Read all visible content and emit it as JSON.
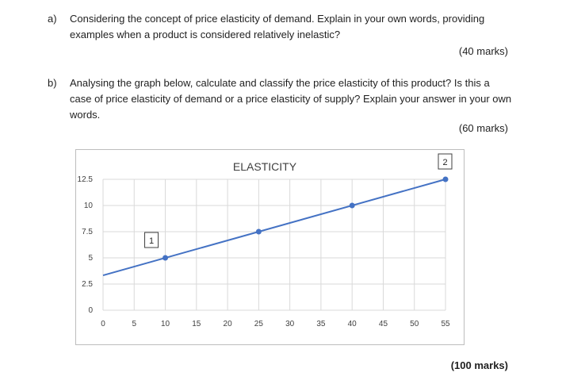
{
  "question_a": {
    "label": "a)",
    "text": "Considering the concept of price elasticity of demand. Explain in your own words, providing examples when a product is considered relatively inelastic?",
    "marks": "(40 marks)"
  },
  "question_b": {
    "label": "b)",
    "text": "Analysing the graph below, calculate and classify the price elasticity of this product? Is this a case of price elasticity of demand or a price elasticity of supply? Explain your answer in your own words.",
    "marks": "(60 marks)"
  },
  "total_marks": "(100 marks)",
  "chart_data": {
    "type": "line",
    "title": "ELASTICITY",
    "x_ticks": [
      "0",
      "5",
      "10",
      "15",
      "20",
      "25",
      "30",
      "35",
      "40",
      "45",
      "50",
      "55"
    ],
    "y_ticks": [
      "0",
      "2.5",
      "5",
      "7.5",
      "10",
      "12.5"
    ],
    "xlim": [
      0,
      55
    ],
    "ylim": [
      0,
      12.5
    ],
    "grid": true,
    "line": {
      "x": [
        0,
        55
      ],
      "y": [
        3.33,
        12.5
      ]
    },
    "points": [
      {
        "x": 10,
        "y": 5
      },
      {
        "x": 25,
        "y": 7.5
      },
      {
        "x": 40,
        "y": 10
      },
      {
        "x": 55,
        "y": 12.5
      }
    ],
    "point_labels": [
      {
        "text": "1",
        "x": 10,
        "y": 5
      },
      {
        "text": "2",
        "x": 55,
        "y": 12.5
      }
    ],
    "line_color": "#4472c4"
  }
}
